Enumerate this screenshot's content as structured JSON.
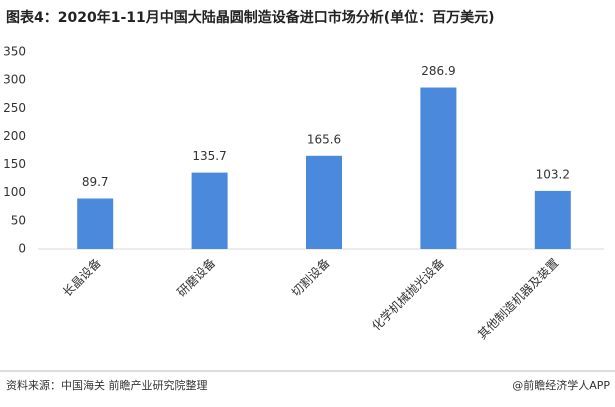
{
  "chart_data": {
    "type": "bar",
    "title": "图表4：2020年1-11月中国大陆晶圆制造设备进口市场分析(单位：百万美元)",
    "categories": [
      "长晶设备",
      "研磨设备",
      "切割设备",
      "化学机械抛光设备",
      "其他制造机器及装置"
    ],
    "values": [
      89.7,
      135.7,
      165.6,
      286.9,
      103.2
    ],
    "color": "#4a89dc",
    "ylim": [
      0,
      350
    ],
    "yticks": [
      0,
      50,
      100,
      150,
      200,
      250,
      300,
      350
    ],
    "grid": false,
    "source": "资料来源：中国海关 前瞻产业研究院整理",
    "credit": "@前瞻经济学人APP"
  }
}
